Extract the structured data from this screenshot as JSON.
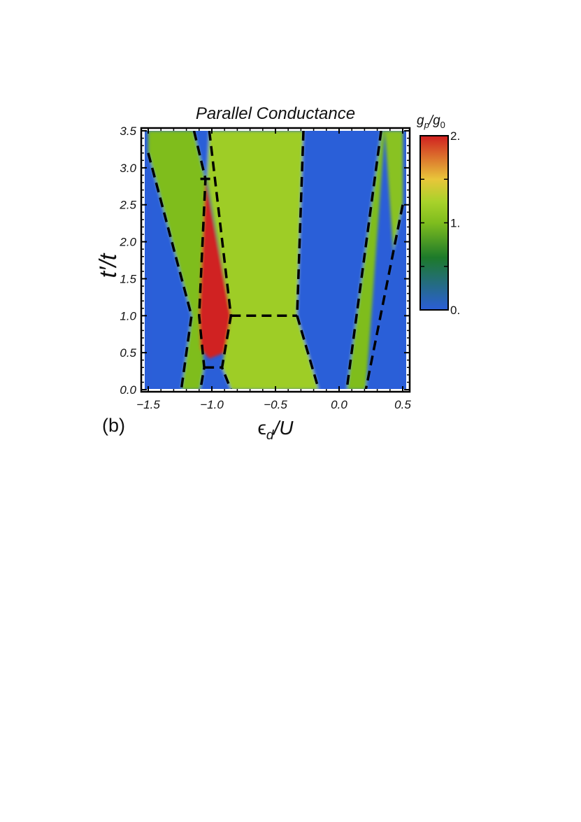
{
  "figure_label": "(b)",
  "chart_data": {
    "type": "heatmap",
    "title": "Parallel Conductance",
    "xlabel_parts": [
      "ϵ",
      "d",
      "/U"
    ],
    "ylabel": "t′/t",
    "xlim": [
      -1.55,
      0.55
    ],
    "ylim": [
      -0.05,
      3.55
    ],
    "x_ticks": [
      {
        "value": -1.5,
        "label": "−1.5"
      },
      {
        "value": -1.0,
        "label": "−1.0"
      },
      {
        "value": -0.5,
        "label": "−0.5"
      },
      {
        "value": 0.0,
        "label": "0.0"
      },
      {
        "value": 0.5,
        "label": "0.5"
      }
    ],
    "y_ticks": [
      {
        "value": 0.0,
        "label": "0.0"
      },
      {
        "value": 0.5,
        "label": "0.5"
      },
      {
        "value": 1.0,
        "label": "1.0"
      },
      {
        "value": 1.5,
        "label": "1.5"
      },
      {
        "value": 2.0,
        "label": "2.0"
      },
      {
        "value": 2.5,
        "label": "2.5"
      },
      {
        "value": 3.0,
        "label": "3.0"
      },
      {
        "value": 3.5,
        "label": "3.5"
      }
    ],
    "colorbar": {
      "label_parts": [
        "g",
        "p",
        "/g",
        "0"
      ],
      "range": [
        0,
        2
      ],
      "tick_labels": [
        {
          "value": 0,
          "label": "0."
        },
        {
          "value": 1,
          "label": "1."
        },
        {
          "value": 2,
          "label": "2."
        }
      ],
      "colors": [
        "#2b5ed8",
        "#1d7a2a",
        "#7fbd1e",
        "#a8d22a",
        "#e8c63a",
        "#d02020"
      ]
    },
    "regions": [
      {
        "id": "blue-left",
        "value": 0.0,
        "polygon": [
          [
            -1.5,
            0.0
          ],
          [
            -1.5,
            3.2
          ],
          [
            -1.16,
            1.0
          ],
          [
            -1.24,
            0.0
          ]
        ]
      },
      {
        "id": "green-left",
        "value": 1.0,
        "polygon": [
          [
            -1.5,
            3.5
          ],
          [
            -1.5,
            3.2
          ],
          [
            -1.16,
            1.0
          ],
          [
            -1.24,
            0.0
          ],
          [
            -1.09,
            0.0
          ],
          [
            -1.06,
            0.3
          ],
          [
            -1.1,
            1.0
          ],
          [
            -1.05,
            2.85
          ],
          [
            -1.14,
            3.5
          ]
        ]
      },
      {
        "id": "blue-strip-top",
        "value": 0.0,
        "polygon": [
          [
            -1.14,
            3.5
          ],
          [
            -1.02,
            3.5
          ],
          [
            -1.04,
            2.85
          ],
          [
            -1.05,
            2.85
          ]
        ]
      },
      {
        "id": "green-center",
        "value": 1.15,
        "polygon": [
          [
            -1.02,
            3.5
          ],
          [
            -0.28,
            3.5
          ],
          [
            -0.33,
            1.0
          ],
          [
            -0.16,
            0.0
          ],
          [
            -0.85,
            0.0
          ],
          [
            -0.92,
            0.3
          ],
          [
            -0.85,
            1.0
          ],
          [
            -1.04,
            2.85
          ]
        ]
      },
      {
        "id": "red-peak",
        "value": 2.0,
        "polygon": [
          [
            -1.05,
            2.85
          ],
          [
            -1.03,
            2.65
          ],
          [
            -0.85,
            1.0
          ],
          [
            -0.9,
            0.5
          ],
          [
            -1.02,
            0.42
          ],
          [
            -1.09,
            0.55
          ],
          [
            -1.1,
            1.0
          ]
        ]
      },
      {
        "id": "blue-bottom",
        "value": 0.0,
        "polygon": [
          [
            -1.06,
            0.3
          ],
          [
            -0.92,
            0.3
          ],
          [
            -0.85,
            0.0
          ],
          [
            -1.09,
            0.0
          ]
        ]
      },
      {
        "id": "blue-right",
        "value": 0.0,
        "polygon": [
          [
            -0.28,
            3.5
          ],
          [
            0.33,
            3.5
          ],
          [
            0.06,
            0.0
          ],
          [
            -0.16,
            0.0
          ],
          [
            -0.33,
            1.0
          ]
        ]
      },
      {
        "id": "green-right-band",
        "value": 1.0,
        "polygon": [
          [
            0.33,
            3.5
          ],
          [
            0.36,
            3.5
          ],
          [
            0.21,
            0.0
          ],
          [
            0.06,
            0.0
          ]
        ]
      },
      {
        "id": "green-right-edge",
        "value": 1.05,
        "polygon": [
          [
            0.36,
            3.5
          ],
          [
            0.5,
            3.5
          ],
          [
            0.5,
            2.5
          ],
          [
            0.21,
            0.0
          ],
          [
            0.5,
            0.0
          ]
        ]
      },
      {
        "id": "blue-right-corner",
        "value": 0.0,
        "polygon": [
          [
            0.5,
            2.5
          ],
          [
            0.5,
            0.0
          ],
          [
            0.21,
            0.0
          ]
        ]
      }
    ],
    "boundaries": [
      {
        "id": "left-outer",
        "points": [
          [
            -1.5,
            3.2
          ],
          [
            -1.16,
            1.0
          ],
          [
            -1.24,
            0.0
          ]
        ]
      },
      {
        "id": "left-inner",
        "points": [
          [
            -1.14,
            3.5
          ],
          [
            -1.05,
            2.85
          ],
          [
            -1.1,
            1.0
          ],
          [
            -1.06,
            0.3
          ],
          [
            -1.09,
            0.0
          ]
        ]
      },
      {
        "id": "top-cap",
        "points": [
          [
            -1.09,
            2.85
          ],
          [
            -1.01,
            2.85
          ]
        ]
      },
      {
        "id": "red-right-edge",
        "points": [
          [
            -1.02,
            3.5
          ],
          [
            -0.85,
            1.0
          ],
          [
            -0.92,
            0.3
          ],
          [
            -0.85,
            0.0
          ]
        ]
      },
      {
        "id": "bottom-cap",
        "points": [
          [
            -1.06,
            0.3
          ],
          [
            -0.92,
            0.3
          ]
        ]
      },
      {
        "id": "middle-plateau",
        "points": [
          [
            -0.85,
            1.0
          ],
          [
            -0.33,
            1.0
          ]
        ]
      },
      {
        "id": "center-right",
        "points": [
          [
            -0.28,
            3.5
          ],
          [
            -0.33,
            1.0
          ],
          [
            -0.16,
            0.0
          ]
        ]
      },
      {
        "id": "right-a",
        "points": [
          [
            0.33,
            3.5
          ],
          [
            0.06,
            0.0
          ]
        ]
      },
      {
        "id": "right-b",
        "points": [
          [
            0.5,
            2.5
          ],
          [
            0.21,
            0.0
          ]
        ]
      }
    ]
  }
}
